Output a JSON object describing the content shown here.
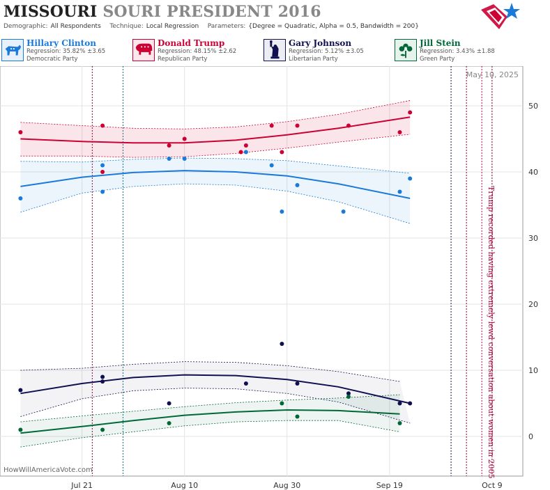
{
  "header": {
    "title_main": "MISSOURI",
    "title_rest": "SOURI PRESIDENT 2016",
    "demographic_label": "Demographic:",
    "demographic_value": "All Respondents",
    "technique_label": "Technique:",
    "technique_value": "Local Regression",
    "parameters_label": "Parameters:",
    "parameters_value": "{Degree = Quadratic, Alpha = 0.5, Bandwidth = 200}"
  },
  "candidates": [
    {
      "name": "Hillary Clinton",
      "regression": "Regression: 35.82% ±3.65",
      "party": "Democratic Party",
      "color": "#1a7ad9",
      "bg": "#e8f1fb",
      "icon": "donkey-icon"
    },
    {
      "name": "Donald Trump",
      "regression": "Regression: 48.15% ±2.62",
      "party": "Republican Party",
      "color": "#cc0033",
      "bg": "#fbe8ec",
      "icon": "elephant-icon"
    },
    {
      "name": "Gary Johnson",
      "regression": "Regression: 5.12% ±3.05",
      "party": "Libertarian Party",
      "color": "#101050",
      "bg": "#ececf3",
      "icon": "statue-of-liberty-icon"
    },
    {
      "name": "Jill Stein",
      "regression": "Regression: 3.43% ±1.88",
      "party": "Green Party",
      "color": "#006837",
      "bg": "#e6f2eb",
      "icon": "flower-icon"
    }
  ],
  "chart_data": {
    "type": "scatter",
    "x_axis": {
      "ticks": [
        {
          "day": 10,
          "label": "Jul 21"
        },
        {
          "day": 30,
          "label": "Aug 10"
        },
        {
          "day": 50,
          "label": "Aug 30"
        },
        {
          "day": 70,
          "label": "Sep 19"
        },
        {
          "day": 90,
          "label": "Oct 9"
        }
      ],
      "range": [
        -6,
        96
      ]
    },
    "y_axis": {
      "ticks": [
        0,
        10,
        20,
        30,
        40,
        50
      ],
      "range": [
        -6,
        56
      ]
    },
    "grid": true,
    "date_label": "May 10, 2025",
    "watermark": "HowWillAmericaVote.com",
    "annotation": "Trump recorded having extremely lewd conversation about women in 2005",
    "vlines": [
      {
        "day": 12,
        "color": "#8b0033"
      },
      {
        "day": 18,
        "color": "#0b6e7d"
      },
      {
        "day": 82,
        "color": "#101050"
      },
      {
        "day": 85,
        "color": "#8b0033"
      },
      {
        "day": 88,
        "color": "#cc0033"
      },
      {
        "day": 90,
        "color": "#8b0033"
      }
    ],
    "series": [
      {
        "name": "Donald Trump",
        "color": "#cc0033",
        "band_fill": "rgba(204,0,51,0.10)",
        "points": [
          [
            -2,
            46
          ],
          [
            14,
            47
          ],
          [
            14,
            40
          ],
          [
            27,
            44
          ],
          [
            30,
            45
          ],
          [
            42,
            44
          ],
          [
            41,
            43
          ],
          [
            47,
            47
          ],
          [
            49,
            43
          ],
          [
            52,
            47
          ],
          [
            62,
            47
          ],
          [
            72,
            46
          ],
          [
            74,
            49
          ]
        ],
        "trend": [
          [
            -2,
            45.0
          ],
          [
            10,
            44.6
          ],
          [
            20,
            44.4
          ],
          [
            30,
            44.4
          ],
          [
            40,
            44.8
          ],
          [
            50,
            45.6
          ],
          [
            60,
            46.6
          ],
          [
            74,
            48.3
          ]
        ],
        "upper": [
          [
            -2,
            47.5
          ],
          [
            10,
            47.0
          ],
          [
            20,
            46.6
          ],
          [
            30,
            46.5
          ],
          [
            40,
            46.8
          ],
          [
            50,
            47.6
          ],
          [
            60,
            48.7
          ],
          [
            74,
            50.8
          ]
        ],
        "lower": [
          [
            -2,
            42.4
          ],
          [
            10,
            42.4
          ],
          [
            20,
            42.2
          ],
          [
            30,
            42.3
          ],
          [
            40,
            42.8
          ],
          [
            50,
            43.6
          ],
          [
            60,
            44.5
          ],
          [
            74,
            45.7
          ]
        ]
      },
      {
        "name": "Hillary Clinton",
        "color": "#1a7ad9",
        "band_fill": "rgba(26,122,217,0.08)",
        "points": [
          [
            -2,
            36
          ],
          [
            14,
            41
          ],
          [
            14,
            37
          ],
          [
            27,
            42
          ],
          [
            30,
            42
          ],
          [
            42,
            43
          ],
          [
            47,
            41
          ],
          [
            49,
            34
          ],
          [
            52,
            38
          ],
          [
            61,
            34
          ],
          [
            72,
            37
          ],
          [
            74,
            39
          ]
        ],
        "trend": [
          [
            -2,
            37.8
          ],
          [
            10,
            39.2
          ],
          [
            20,
            39.9
          ],
          [
            30,
            40.2
          ],
          [
            40,
            40.0
          ],
          [
            50,
            39.4
          ],
          [
            60,
            38.2
          ],
          [
            74,
            36.0
          ]
        ],
        "upper": [
          [
            -2,
            41.6
          ],
          [
            10,
            41.5
          ],
          [
            20,
            41.9
          ],
          [
            30,
            42.1
          ],
          [
            40,
            42.0
          ],
          [
            50,
            41.7
          ],
          [
            60,
            40.9
          ],
          [
            74,
            39.8
          ]
        ],
        "lower": [
          [
            -2,
            33.9
          ],
          [
            10,
            36.8
          ],
          [
            20,
            37.8
          ],
          [
            30,
            38.2
          ],
          [
            40,
            38.0
          ],
          [
            50,
            37.1
          ],
          [
            60,
            35.5
          ],
          [
            74,
            32.2
          ]
        ]
      },
      {
        "name": "Gary Johnson",
        "color": "#101050",
        "band_fill": "rgba(16,16,80,0.05)",
        "points": [
          [
            -2,
            7
          ],
          [
            14,
            9
          ],
          [
            14,
            8.3
          ],
          [
            27,
            5
          ],
          [
            42,
            8
          ],
          [
            49,
            14
          ],
          [
            52,
            8
          ],
          [
            62,
            6.5
          ],
          [
            72,
            5
          ],
          [
            74,
            5
          ]
        ],
        "trend": [
          [
            -2,
            6.5
          ],
          [
            10,
            8.0
          ],
          [
            20,
            8.9
          ],
          [
            30,
            9.3
          ],
          [
            40,
            9.2
          ],
          [
            50,
            8.6
          ],
          [
            60,
            7.5
          ],
          [
            74,
            5.0
          ]
        ],
        "upper": [
          [
            -2,
            10.0
          ],
          [
            10,
            10.3
          ],
          [
            20,
            10.9
          ],
          [
            30,
            11.3
          ],
          [
            40,
            11.2
          ],
          [
            50,
            10.7
          ],
          [
            60,
            9.8
          ],
          [
            72,
            8.3
          ]
        ],
        "lower": [
          [
            -2,
            3.0
          ],
          [
            10,
            5.7
          ],
          [
            20,
            6.9
          ],
          [
            30,
            7.3
          ],
          [
            40,
            7.2
          ],
          [
            50,
            6.5
          ],
          [
            60,
            5.2
          ],
          [
            74,
            2.0
          ]
        ]
      },
      {
        "name": "Jill Stein",
        "color": "#006837",
        "band_fill": "rgba(0,104,55,0.07)",
        "points": [
          [
            -2,
            1
          ],
          [
            14,
            1
          ],
          [
            27,
            2
          ],
          [
            49,
            5
          ],
          [
            52,
            3
          ],
          [
            62,
            6
          ],
          [
            72,
            2
          ]
        ],
        "trend": [
          [
            -2,
            0.5
          ],
          [
            10,
            1.5
          ],
          [
            20,
            2.4
          ],
          [
            30,
            3.2
          ],
          [
            40,
            3.7
          ],
          [
            50,
            4.0
          ],
          [
            60,
            3.9
          ],
          [
            72,
            3.4
          ]
        ],
        "upper": [
          [
            -2,
            2.2
          ],
          [
            10,
            3.1
          ],
          [
            20,
            3.8
          ],
          [
            30,
            4.5
          ],
          [
            40,
            5.1
          ],
          [
            50,
            5.5
          ],
          [
            60,
            5.8
          ],
          [
            72,
            6.3
          ]
        ],
        "lower": [
          [
            -2,
            -1.6
          ],
          [
            10,
            -0.2
          ],
          [
            20,
            0.7
          ],
          [
            30,
            1.6
          ],
          [
            40,
            2.2
          ],
          [
            50,
            2.4
          ],
          [
            60,
            2.4
          ],
          [
            72,
            0.7
          ]
        ]
      }
    ]
  }
}
